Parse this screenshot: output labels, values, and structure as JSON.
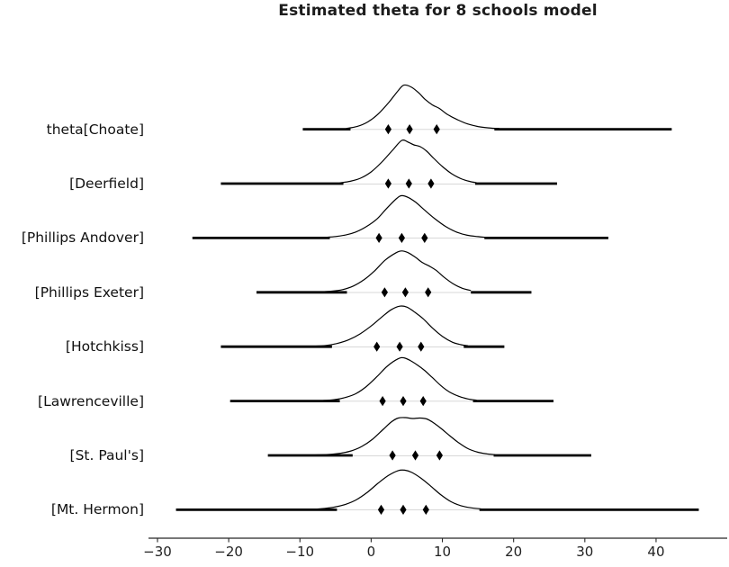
{
  "title": "Estimated theta for 8 schools model",
  "colors": {
    "background": "#ffffff",
    "text": "#111111",
    "title_text": "#1c1c1c",
    "axis": "#262626",
    "curve": "#000000",
    "tail_segment": "#000000",
    "interval_line": "#b0b0b0",
    "diamond": "#000000"
  },
  "chart_data": {
    "type": "ridgeline",
    "title": "Estimated theta for 8 schools model",
    "xlabel": "",
    "ylabel": "",
    "x_ticks": [
      -30,
      -20,
      -10,
      0,
      10,
      20,
      30,
      40
    ],
    "x_tick_labels": [
      "−30",
      "−20",
      "−10",
      "0",
      "10",
      "20",
      "30",
      "40"
    ],
    "xlim": [
      -31.3,
      50.0
    ],
    "legend": "none",
    "grid": false,
    "quantile_markers": [
      0.25,
      0.5,
      0.75
    ],
    "rows": [
      {
        "label": "theta[Choate]",
        "sample_range": [
          -9.6,
          42.2
        ],
        "hdi": [
          -2.9,
          17.3
        ],
        "quartiles": [
          2.4,
          5.4,
          9.2
        ],
        "curve": [
          [
            -3.5,
            0.8
          ],
          [
            -2.0,
            3
          ],
          [
            -0.5,
            8
          ],
          [
            1.0,
            17
          ],
          [
            2.5,
            30
          ],
          [
            3.8,
            43
          ],
          [
            4.6,
            49
          ],
          [
            5.6,
            47
          ],
          [
            6.6,
            41
          ],
          [
            7.6,
            33
          ],
          [
            8.6,
            27
          ],
          [
            9.6,
            23
          ],
          [
            10.6,
            17
          ],
          [
            12.0,
            11
          ],
          [
            13.5,
            6
          ],
          [
            15.0,
            3
          ],
          [
            16.5,
            1.5
          ],
          [
            18.0,
            0.8
          ]
        ]
      },
      {
        "label": "[Deerfield]",
        "sample_range": [
          -21.1,
          26.1
        ],
        "hdi": [
          -3.9,
          14.6
        ],
        "quartiles": [
          2.4,
          5.3,
          8.4
        ],
        "curve": [
          [
            -4.4,
            0.8
          ],
          [
            -3.0,
            2.5
          ],
          [
            -1.5,
            6
          ],
          [
            0.0,
            13
          ],
          [
            1.5,
            24
          ],
          [
            3.0,
            37
          ],
          [
            4.3,
            48
          ],
          [
            5.2,
            46
          ],
          [
            6.0,
            43
          ],
          [
            6.9,
            41
          ],
          [
            7.8,
            36
          ],
          [
            8.8,
            28
          ],
          [
            10.0,
            19
          ],
          [
            11.3,
            11
          ],
          [
            12.6,
            5.5
          ],
          [
            13.8,
            2.5
          ],
          [
            14.8,
            1
          ]
        ]
      },
      {
        "label": "[Phillips Andover]",
        "sample_range": [
          -25.1,
          33.3
        ],
        "hdi": [
          -5.8,
          15.9
        ],
        "quartiles": [
          1.1,
          4.3,
          7.5
        ],
        "curve": [
          [
            -6.6,
            0.6
          ],
          [
            -5.0,
            1.6
          ],
          [
            -3.5,
            3.5
          ],
          [
            -2.2,
            6.5
          ],
          [
            -0.8,
            12
          ],
          [
            0.8,
            21
          ],
          [
            2.2,
            33
          ],
          [
            3.6,
            44
          ],
          [
            4.3,
            47
          ],
          [
            5.2,
            45
          ],
          [
            6.2,
            40
          ],
          [
            7.5,
            31
          ],
          [
            9.0,
            21
          ],
          [
            10.5,
            12.5
          ],
          [
            12.0,
            6.5
          ],
          [
            13.5,
            3
          ],
          [
            15.0,
            1.5
          ],
          [
            16.0,
            0.8
          ]
        ]
      },
      {
        "label": "[Phillips Exeter]",
        "sample_range": [
          -16.1,
          22.5
        ],
        "hdi": [
          -3.4,
          14.0
        ],
        "quartiles": [
          1.9,
          4.8,
          8.0
        ],
        "curve": [
          [
            -7.1,
            0.5
          ],
          [
            -5.5,
            1.3
          ],
          [
            -4.0,
            3
          ],
          [
            -2.5,
            7
          ],
          [
            -1.0,
            14
          ],
          [
            0.5,
            24
          ],
          [
            2.0,
            36
          ],
          [
            3.5,
            44
          ],
          [
            4.3,
            46
          ],
          [
            5.2,
            44
          ],
          [
            6.2,
            39
          ],
          [
            7.2,
            33
          ],
          [
            8.2,
            29
          ],
          [
            9.2,
            24
          ],
          [
            10.2,
            17
          ],
          [
            11.5,
            9.5
          ],
          [
            12.8,
            4.5
          ],
          [
            14.0,
            2
          ]
        ]
      },
      {
        "label": "[Hotchkiss]",
        "sample_range": [
          -21.1,
          18.7
        ],
        "hdi": [
          -5.5,
          13.0
        ],
        "quartiles": [
          0.8,
          4.0,
          7.0
        ],
        "curve": [
          [
            -8.1,
            0.5
          ],
          [
            -6.3,
            1.4
          ],
          [
            -4.8,
            3.5
          ],
          [
            -3.2,
            7.5
          ],
          [
            -1.6,
            14
          ],
          [
            0.0,
            23
          ],
          [
            1.5,
            33
          ],
          [
            2.8,
            41
          ],
          [
            4.0,
            45
          ],
          [
            5.0,
            44
          ],
          [
            6.0,
            39
          ],
          [
            7.3,
            31
          ],
          [
            8.7,
            20
          ],
          [
            10.0,
            11.5
          ],
          [
            11.4,
            5
          ],
          [
            12.6,
            2.2
          ],
          [
            13.6,
            1
          ]
        ]
      },
      {
        "label": "[Lawrenceville]",
        "sample_range": [
          -19.8,
          25.6
        ],
        "hdi": [
          -4.4,
          14.3
        ],
        "quartiles": [
          1.6,
          4.5,
          7.3
        ],
        "curve": [
          [
            -6.7,
            0.6
          ],
          [
            -5.2,
            1.5
          ],
          [
            -3.7,
            3.8
          ],
          [
            -2.2,
            8
          ],
          [
            -0.7,
            16
          ],
          [
            0.8,
            27
          ],
          [
            2.3,
            39
          ],
          [
            3.8,
            47
          ],
          [
            4.6,
            48
          ],
          [
            5.5,
            45
          ],
          [
            6.5,
            40
          ],
          [
            7.5,
            34
          ],
          [
            8.6,
            26
          ],
          [
            9.8,
            17
          ],
          [
            11.0,
            10
          ],
          [
            12.4,
            5
          ],
          [
            13.6,
            2.3
          ],
          [
            14.8,
            1
          ]
        ]
      },
      {
        "label": "[St. Paul's]",
        "sample_range": [
          -14.5,
          30.9
        ],
        "hdi": [
          -2.6,
          17.2
        ],
        "quartiles": [
          3.0,
          6.2,
          9.6
        ],
        "curve": [
          [
            -8.0,
            0.4
          ],
          [
            -6.0,
            1
          ],
          [
            -4.3,
            2.4
          ],
          [
            -2.8,
            5
          ],
          [
            -1.3,
            10
          ],
          [
            0.2,
            18
          ],
          [
            1.7,
            29
          ],
          [
            2.8,
            37
          ],
          [
            3.8,
            41.5
          ],
          [
            4.8,
            42
          ],
          [
            5.8,
            41
          ],
          [
            6.8,
            41.5
          ],
          [
            7.8,
            40.5
          ],
          [
            8.8,
            36
          ],
          [
            9.8,
            30
          ],
          [
            11.0,
            22
          ],
          [
            12.3,
            14
          ],
          [
            13.6,
            7.5
          ],
          [
            15.0,
            3.5
          ],
          [
            16.3,
            1.6
          ],
          [
            17.4,
            0.8
          ]
        ]
      },
      {
        "label": "[Mt. Hermon]",
        "sample_range": [
          -27.4,
          46.0
        ],
        "hdi": [
          -4.8,
          15.2
        ],
        "quartiles": [
          1.4,
          4.5,
          7.7
        ],
        "curve": [
          [
            -8.1,
            0.5
          ],
          [
            -6.6,
            1.4
          ],
          [
            -5.1,
            3
          ],
          [
            -3.6,
            6
          ],
          [
            -2.1,
            11
          ],
          [
            -0.6,
            19
          ],
          [
            0.9,
            29
          ],
          [
            2.4,
            38
          ],
          [
            3.8,
            43.5
          ],
          [
            4.7,
            44
          ],
          [
            5.7,
            41.5
          ],
          [
            7.0,
            35
          ],
          [
            8.4,
            26
          ],
          [
            9.8,
            16.5
          ],
          [
            11.2,
            9
          ],
          [
            12.6,
            4.5
          ],
          [
            14.0,
            2.2
          ],
          [
            15.4,
            1
          ]
        ]
      }
    ]
  }
}
